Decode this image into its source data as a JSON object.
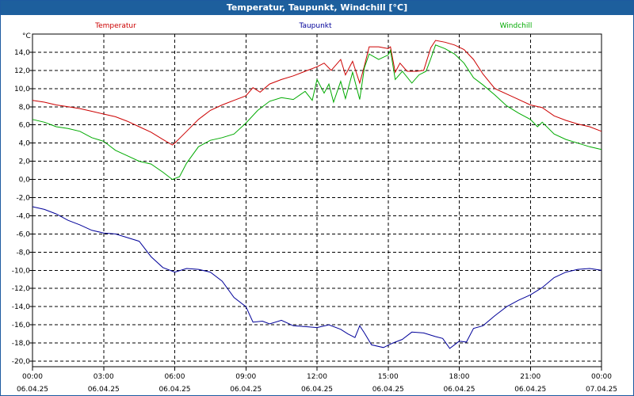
{
  "chart_data": {
    "type": "line",
    "title": "Temperatur, Taupunkt, Windchill [°C]",
    "ylabel": "°C",
    "ylim": [
      -20,
      16
    ],
    "yticks": [
      -20,
      -18,
      -16,
      -14,
      -12,
      -10,
      -8,
      -6,
      -4,
      -2,
      0,
      2,
      4,
      6,
      8,
      10,
      12,
      14
    ],
    "ytick_labels": [
      "-20,0",
      "-18,0",
      "-16,0",
      "-14,0",
      "-12,0",
      "-10,0",
      "-8,0",
      "-6,0",
      "-4,0",
      "-2,0",
      "0,0",
      "2,0",
      "4,0",
      "6,0",
      "8,0",
      "10,0",
      "12,0",
      "14,0"
    ],
    "xlim": [
      0,
      24
    ],
    "x_ticks": [
      {
        "h": 0,
        "time": "00:00",
        "date": "06.04.25"
      },
      {
        "h": 3,
        "time": "03:00",
        "date": "06.04.25"
      },
      {
        "h": 6,
        "time": "06:00",
        "date": "06.04.25"
      },
      {
        "h": 9,
        "time": "09:00",
        "date": "06.04.25"
      },
      {
        "h": 12,
        "time": "12:00",
        "date": "06.04.25"
      },
      {
        "h": 15,
        "time": "15:00",
        "date": "06.04.25"
      },
      {
        "h": 18,
        "time": "18:00",
        "date": "06.04.25"
      },
      {
        "h": 21,
        "time": "21:00",
        "date": "06.04.25"
      },
      {
        "h": 24,
        "time": "00:00",
        "date": "07.04.25"
      }
    ],
    "grid": true,
    "series": [
      {
        "name": "Temperatur",
        "color": "#cc0000",
        "points": [
          [
            0,
            8.7
          ],
          [
            0.5,
            8.5
          ],
          [
            1,
            8.2
          ],
          [
            1.5,
            8.0
          ],
          [
            2,
            7.8
          ],
          [
            2.5,
            7.5
          ],
          [
            3,
            7.2
          ],
          [
            3.5,
            6.9
          ],
          [
            4,
            6.4
          ],
          [
            4.5,
            5.8
          ],
          [
            5,
            5.2
          ],
          [
            5.5,
            4.4
          ],
          [
            5.9,
            3.8
          ],
          [
            6,
            4.0
          ],
          [
            6.5,
            5.3
          ],
          [
            7,
            6.6
          ],
          [
            7.5,
            7.6
          ],
          [
            8,
            8.2
          ],
          [
            8.5,
            8.7
          ],
          [
            9,
            9.2
          ],
          [
            9.3,
            10.1
          ],
          [
            9.6,
            9.6
          ],
          [
            10,
            10.5
          ],
          [
            10.5,
            11.0
          ],
          [
            11,
            11.4
          ],
          [
            11.5,
            11.9
          ],
          [
            12,
            12.4
          ],
          [
            12.3,
            12.8
          ],
          [
            12.6,
            12.0
          ],
          [
            13,
            13.2
          ],
          [
            13.2,
            11.5
          ],
          [
            13.5,
            13.0
          ],
          [
            13.8,
            10.6
          ],
          [
            14,
            12.5
          ],
          [
            14.2,
            14.6
          ],
          [
            14.6,
            14.6
          ],
          [
            15,
            14.4
          ],
          [
            15.1,
            14.6
          ],
          [
            15.3,
            11.8
          ],
          [
            15.5,
            12.8
          ],
          [
            15.8,
            11.9
          ],
          [
            16.2,
            11.9
          ],
          [
            16.5,
            12.0
          ],
          [
            16.8,
            14.5
          ],
          [
            17,
            15.3
          ],
          [
            17.4,
            15.1
          ],
          [
            17.8,
            14.8
          ],
          [
            18.2,
            14.3
          ],
          [
            18.6,
            13.2
          ],
          [
            19,
            11.6
          ],
          [
            19.5,
            10.0
          ],
          [
            20,
            9.4
          ],
          [
            20.5,
            8.8
          ],
          [
            21,
            8.2
          ],
          [
            21.5,
            7.9
          ],
          [
            22,
            7.0
          ],
          [
            22.5,
            6.5
          ],
          [
            23,
            6.1
          ],
          [
            23.5,
            5.8
          ],
          [
            24,
            5.3
          ]
        ]
      },
      {
        "name": "Taupunkt",
        "color": "#000099",
        "points": [
          [
            0,
            -3.0
          ],
          [
            0.5,
            -3.3
          ],
          [
            1,
            -3.8
          ],
          [
            1.5,
            -4.5
          ],
          [
            2,
            -5.0
          ],
          [
            2.5,
            -5.6
          ],
          [
            3,
            -5.9
          ],
          [
            3.5,
            -6.0
          ],
          [
            4,
            -6.4
          ],
          [
            4.5,
            -6.8
          ],
          [
            5,
            -8.5
          ],
          [
            5.5,
            -9.7
          ],
          [
            6,
            -10.2
          ],
          [
            6.5,
            -9.8
          ],
          [
            7,
            -9.9
          ],
          [
            7.5,
            -10.2
          ],
          [
            8,
            -11.2
          ],
          [
            8.5,
            -13.0
          ],
          [
            9,
            -14.0
          ],
          [
            9.3,
            -15.7
          ],
          [
            9.7,
            -15.6
          ],
          [
            10,
            -15.9
          ],
          [
            10.5,
            -15.5
          ],
          [
            11,
            -16.1
          ],
          [
            11.5,
            -16.2
          ],
          [
            12,
            -16.3
          ],
          [
            12.5,
            -16.0
          ],
          [
            13,
            -16.5
          ],
          [
            13.3,
            -17.0
          ],
          [
            13.6,
            -17.4
          ],
          [
            13.8,
            -16.1
          ],
          [
            14,
            -16.9
          ],
          [
            14.3,
            -18.2
          ],
          [
            14.8,
            -18.5
          ],
          [
            15.2,
            -18.0
          ],
          [
            15.6,
            -17.6
          ],
          [
            16,
            -16.8
          ],
          [
            16.5,
            -16.9
          ],
          [
            17,
            -17.3
          ],
          [
            17.3,
            -17.5
          ],
          [
            17.6,
            -18.6
          ],
          [
            18,
            -17.8
          ],
          [
            18.3,
            -17.9
          ],
          [
            18.6,
            -16.4
          ],
          [
            19,
            -16.1
          ],
          [
            19.5,
            -15.0
          ],
          [
            20,
            -14.0
          ],
          [
            20.5,
            -13.3
          ],
          [
            21,
            -12.7
          ],
          [
            21.5,
            -11.9
          ],
          [
            22,
            -10.8
          ],
          [
            22.5,
            -10.2
          ],
          [
            23,
            -9.9
          ],
          [
            23.5,
            -9.8
          ],
          [
            24,
            -10.0
          ]
        ]
      },
      {
        "name": "Windchill",
        "color": "#00aa00",
        "points": [
          [
            0,
            6.6
          ],
          [
            0.5,
            6.3
          ],
          [
            1,
            5.8
          ],
          [
            1.5,
            5.6
          ],
          [
            2,
            5.3
          ],
          [
            2.5,
            4.6
          ],
          [
            3,
            4.2
          ],
          [
            3.5,
            3.2
          ],
          [
            4,
            2.6
          ],
          [
            4.5,
            2.0
          ],
          [
            5,
            1.7
          ],
          [
            5.5,
            0.8
          ],
          [
            5.9,
            0.0
          ],
          [
            6.2,
            0.3
          ],
          [
            6.5,
            1.8
          ],
          [
            7,
            3.6
          ],
          [
            7.5,
            4.3
          ],
          [
            8,
            4.6
          ],
          [
            8.5,
            5.0
          ],
          [
            9,
            6.2
          ],
          [
            9.5,
            7.6
          ],
          [
            10,
            8.6
          ],
          [
            10.5,
            9.0
          ],
          [
            11,
            8.8
          ],
          [
            11.5,
            9.7
          ],
          [
            11.8,
            8.7
          ],
          [
            12,
            11.0
          ],
          [
            12.3,
            9.5
          ],
          [
            12.5,
            10.5
          ],
          [
            12.7,
            8.5
          ],
          [
            13,
            10.8
          ],
          [
            13.2,
            8.9
          ],
          [
            13.5,
            11.8
          ],
          [
            13.8,
            8.8
          ],
          [
            14,
            12.3
          ],
          [
            14.2,
            13.8
          ],
          [
            14.6,
            13.2
          ],
          [
            15,
            13.7
          ],
          [
            15.1,
            14.2
          ],
          [
            15.3,
            11.0
          ],
          [
            15.6,
            11.9
          ],
          [
            16,
            10.6
          ],
          [
            16.3,
            11.5
          ],
          [
            16.6,
            11.9
          ],
          [
            16.8,
            13.3
          ],
          [
            17,
            14.8
          ],
          [
            17.4,
            14.4
          ],
          [
            17.8,
            13.8
          ],
          [
            18.2,
            12.8
          ],
          [
            18.6,
            11.2
          ],
          [
            19,
            10.4
          ],
          [
            19.5,
            9.3
          ],
          [
            20,
            8.1
          ],
          [
            20.5,
            7.3
          ],
          [
            21,
            6.6
          ],
          [
            21.3,
            5.8
          ],
          [
            21.5,
            6.3
          ],
          [
            22,
            5.0
          ],
          [
            22.5,
            4.4
          ],
          [
            23,
            4.0
          ],
          [
            23.5,
            3.6
          ],
          [
            24,
            3.3
          ]
        ]
      }
    ]
  }
}
